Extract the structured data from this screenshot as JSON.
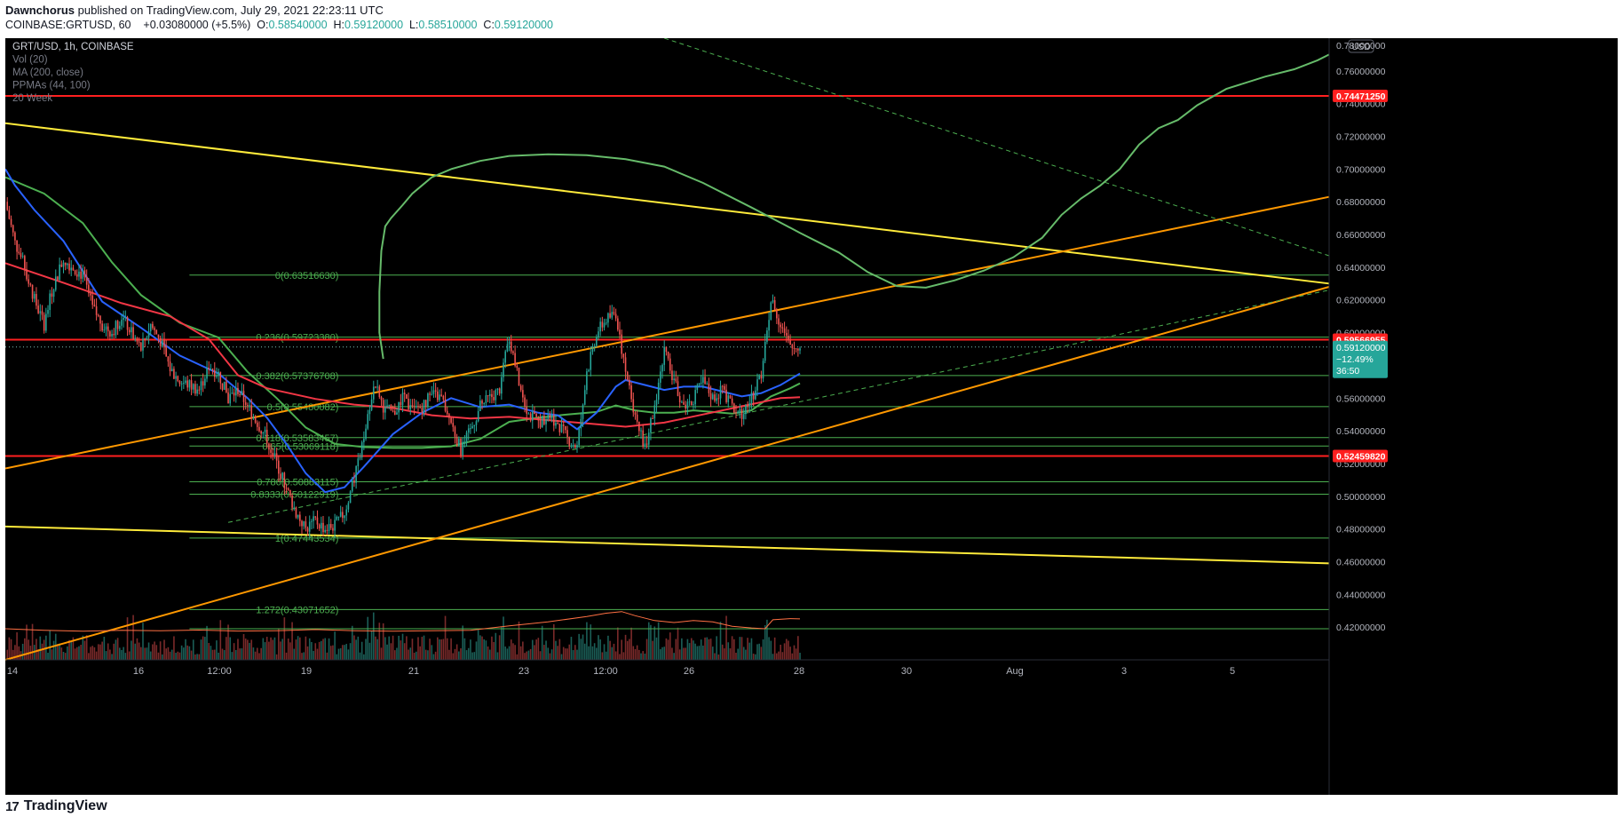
{
  "header": {
    "author": "Dawnchorus",
    "published": "published on TradingView.com, July 29, 2021 22:23:11 UTC",
    "symbol_line": "COINBASE:GRTUSD, 60",
    "change": "+0.03080000 (+5.5%)",
    "o_label": "O:",
    "o": "0.58540000",
    "h_label": "H:",
    "h": "0.59120000",
    "l_label": "L:",
    "l": "0.58510000",
    "c_label": "C:",
    "c": "0.59120000"
  },
  "legend": [
    "GRT/USD, 1h, COINBASE",
    "Vol (20)",
    "MA (200, close)",
    "PPMAs (44, 100)",
    "20 Week"
  ],
  "brand": {
    "logo": "17",
    "name": "TradingView"
  },
  "colors": {
    "background": "#000000",
    "up": "#26a69a",
    "down": "#ef5350",
    "fib": "#4caf50",
    "red_level": "#ff1f1f",
    "yellow": "#ffeb3b",
    "orange": "#ff9800",
    "green_ma": "#66bb6a",
    "blue_ma": "#2962ff",
    "red_ma": "#f23645",
    "price_tag": "#26a69a"
  },
  "chart_data": {
    "type": "candlestick",
    "x_ticks": [
      "14",
      "16",
      "12:00",
      "19",
      "21",
      "23",
      "12:00",
      "26",
      "28",
      "30",
      "Aug",
      "3",
      "5"
    ],
    "x_range": [
      "Jul 13 2021",
      "Aug 6 2021"
    ],
    "y_range": [
      0.4,
      0.78
    ],
    "y_ticks": [
      "0.76000000",
      "0.74000000",
      "0.72000000",
      "0.70000000",
      "0.68000000",
      "0.66000000",
      "0.64000000",
      "0.62000000",
      "0.60000000",
      "0.58000000",
      "0.56000000",
      "0.54000000",
      "0.52000000",
      "0.50000000",
      "0.48000000",
      "0.46000000",
      "0.44000000",
      "0.42000000"
    ],
    "currency_badge": "USD",
    "price_axis_tags": [
      {
        "value": 0.78,
        "text": "0.78000000",
        "type": "edge"
      },
      {
        "value": 0.7447125,
        "text": "0.74471250",
        "type": "red"
      },
      {
        "value": 0.59566955,
        "text": "0.59566955",
        "type": "red"
      },
      {
        "value": 0.5245982,
        "text": "0.52459820",
        "type": "red"
      }
    ],
    "last_price": {
      "value": 0.5912,
      "price": "0.59120000",
      "change": "−12.49%",
      "countdown": "36:50"
    },
    "fib_levels": [
      {
        "label": "0(0.63516630)",
        "value": 0.6351663
      },
      {
        "label": "0.236(0.59723380)",
        "value": 0.5972338
      },
      {
        "label": "0.382(0.57376708)",
        "value": 0.57376708
      },
      {
        "label": "0.5(0.55480082)",
        "value": 0.55480082
      },
      {
        "label": "0.618(0.53583457)",
        "value": 0.53583457
      },
      {
        "label": "0.65(0.53069118)",
        "value": 0.53069118
      },
      {
        "label": "0.786(0.50883115)",
        "value": 0.50883115
      },
      {
        "label": "0.8333(0.50122919)",
        "value": 0.50122919
      },
      {
        "label": "1(0.47443534)",
        "value": 0.47443534
      },
      {
        "label": "1.272(0.43071652)",
        "value": 0.43071652
      },
      {
        "label": "",
        "value": 0.419
      }
    ],
    "horizontal_levels": [
      0.7447125,
      0.59566955,
      0.5245982
    ],
    "close_series": [
      [
        0,
        0.68
      ],
      [
        5,
        0.655
      ],
      [
        10,
        0.64
      ],
      [
        15,
        0.62
      ],
      [
        20,
        0.605
      ],
      [
        25,
        0.63
      ],
      [
        30,
        0.645
      ],
      [
        35,
        0.64
      ],
      [
        40,
        0.635
      ],
      [
        45,
        0.615
      ],
      [
        50,
        0.605
      ],
      [
        55,
        0.6
      ],
      [
        60,
        0.61
      ],
      [
        65,
        0.6
      ],
      [
        70,
        0.59
      ],
      [
        75,
        0.605
      ],
      [
        80,
        0.595
      ],
      [
        85,
        0.578
      ],
      [
        90,
        0.57
      ],
      [
        95,
        0.568
      ],
      [
        100,
        0.565
      ],
      [
        105,
        0.58
      ],
      [
        110,
        0.575
      ],
      [
        115,
        0.56
      ],
      [
        120,
        0.565
      ],
      [
        125,
        0.555
      ],
      [
        130,
        0.545
      ],
      [
        135,
        0.535
      ],
      [
        140,
        0.52
      ],
      [
        145,
        0.505
      ],
      [
        150,
        0.49
      ],
      [
        155,
        0.48
      ],
      [
        160,
        0.485
      ],
      [
        165,
        0.48
      ],
      [
        170,
        0.482
      ],
      [
        175,
        0.49
      ],
      [
        180,
        0.51
      ],
      [
        185,
        0.535
      ],
      [
        190,
        0.57
      ],
      [
        195,
        0.555
      ],
      [
        200,
        0.55
      ],
      [
        205,
        0.56
      ],
      [
        210,
        0.552
      ],
      [
        215,
        0.555
      ],
      [
        220,
        0.562
      ],
      [
        225,
        0.56
      ],
      [
        230,
        0.545
      ],
      [
        235,
        0.528
      ],
      [
        240,
        0.54
      ],
      [
        245,
        0.555
      ],
      [
        250,
        0.56
      ],
      [
        255,
        0.565
      ],
      [
        260,
        0.598
      ],
      [
        265,
        0.57
      ],
      [
        270,
        0.55
      ],
      [
        275,
        0.545
      ],
      [
        280,
        0.55
      ],
      [
        285,
        0.545
      ],
      [
        290,
        0.535
      ],
      [
        295,
        0.53
      ],
      [
        300,
        0.575
      ],
      [
        305,
        0.6
      ],
      [
        310,
        0.608
      ],
      [
        315,
        0.612
      ],
      [
        320,
        0.575
      ],
      [
        325,
        0.55
      ],
      [
        330,
        0.53
      ],
      [
        335,
        0.555
      ],
      [
        340,
        0.59
      ],
      [
        345,
        0.57
      ],
      [
        350,
        0.555
      ],
      [
        355,
        0.56
      ],
      [
        360,
        0.57
      ],
      [
        365,
        0.56
      ],
      [
        370,
        0.565
      ],
      [
        375,
        0.555
      ],
      [
        380,
        0.55
      ],
      [
        385,
        0.56
      ],
      [
        390,
        0.575
      ],
      [
        395,
        0.62
      ],
      [
        400,
        0.605
      ],
      [
        405,
        0.59
      ],
      [
        410,
        0.5912
      ]
    ],
    "volume_ma_series": [
      [
        0,
        0.419
      ],
      [
        20,
        0.418
      ],
      [
        40,
        0.4175
      ],
      [
        60,
        0.418
      ],
      [
        80,
        0.4178
      ],
      [
        100,
        0.4182
      ],
      [
        120,
        0.4176
      ],
      [
        140,
        0.4178
      ],
      [
        160,
        0.4185
      ],
      [
        180,
        0.4178
      ],
      [
        200,
        0.4175
      ],
      [
        220,
        0.4178
      ],
      [
        240,
        0.418
      ],
      [
        260,
        0.4208
      ],
      [
        280,
        0.4232
      ],
      [
        300,
        0.4265
      ],
      [
        310,
        0.4285
      ],
      [
        318,
        0.4295
      ],
      [
        325,
        0.427
      ],
      [
        335,
        0.424
      ],
      [
        345,
        0.4228
      ],
      [
        355,
        0.424
      ],
      [
        365,
        0.4232
      ],
      [
        375,
        0.4205
      ],
      [
        385,
        0.4195
      ],
      [
        392,
        0.419
      ],
      [
        396,
        0.4245
      ],
      [
        405,
        0.4252
      ],
      [
        410,
        0.425
      ]
    ],
    "ma_200": [
      [
        0,
        0.6425
      ],
      [
        30,
        0.6305
      ],
      [
        60,
        0.618
      ],
      [
        85,
        0.61
      ],
      [
        105,
        0.596
      ],
      [
        120,
        0.574
      ],
      [
        135,
        0.566
      ],
      [
        160,
        0.5595
      ],
      [
        180,
        0.556
      ],
      [
        200,
        0.554
      ],
      [
        220,
        0.5495
      ],
      [
        240,
        0.5475
      ],
      [
        260,
        0.5485
      ],
      [
        280,
        0.5465
      ],
      [
        300,
        0.5445
      ],
      [
        320,
        0.5425
      ],
      [
        340,
        0.545
      ],
      [
        360,
        0.55
      ],
      [
        380,
        0.555
      ],
      [
        400,
        0.56
      ],
      [
        410,
        0.5605
      ]
    ],
    "ppma_blue": [
      [
        0,
        0.7
      ],
      [
        5,
        0.69
      ],
      [
        15,
        0.675
      ],
      [
        30,
        0.656
      ],
      [
        50,
        0.619
      ],
      [
        70,
        0.603
      ],
      [
        90,
        0.586
      ],
      [
        110,
        0.575
      ],
      [
        125,
        0.56
      ],
      [
        135,
        0.548
      ],
      [
        145,
        0.532
      ],
      [
        155,
        0.514
      ],
      [
        165,
        0.5025
      ],
      [
        175,
        0.5055
      ],
      [
        185,
        0.518
      ],
      [
        200,
        0.538
      ],
      [
        215,
        0.551
      ],
      [
        230,
        0.56
      ],
      [
        245,
        0.5545
      ],
      [
        260,
        0.556
      ],
      [
        275,
        0.551
      ],
      [
        285,
        0.5495
      ],
      [
        295,
        0.541
      ],
      [
        305,
        0.551
      ],
      [
        315,
        0.567
      ],
      [
        320,
        0.571
      ],
      [
        330,
        0.568
      ],
      [
        340,
        0.565
      ],
      [
        350,
        0.567
      ],
      [
        360,
        0.567
      ],
      [
        370,
        0.564
      ],
      [
        380,
        0.561
      ],
      [
        390,
        0.563
      ],
      [
        400,
        0.568
      ],
      [
        410,
        0.575
      ]
    ],
    "ppma_green": [
      [
        0,
        0.695
      ],
      [
        20,
        0.685
      ],
      [
        40,
        0.667
      ],
      [
        55,
        0.643
      ],
      [
        70,
        0.623
      ],
      [
        90,
        0.606
      ],
      [
        110,
        0.597
      ],
      [
        125,
        0.576
      ],
      [
        140,
        0.56
      ],
      [
        155,
        0.542
      ],
      [
        170,
        0.532
      ],
      [
        185,
        0.53
      ],
      [
        200,
        0.5295
      ],
      [
        215,
        0.5295
      ],
      [
        230,
        0.5305
      ],
      [
        245,
        0.535
      ],
      [
        260,
        0.5455
      ],
      [
        275,
        0.548
      ],
      [
        290,
        0.55
      ],
      [
        305,
        0.5515
      ],
      [
        315,
        0.5555
      ],
      [
        325,
        0.5525
      ],
      [
        335,
        0.551
      ],
      [
        345,
        0.551
      ],
      [
        355,
        0.5525
      ],
      [
        365,
        0.5515
      ],
      [
        375,
        0.5505
      ],
      [
        385,
        0.5525
      ],
      [
        395,
        0.561
      ],
      [
        405,
        0.566
      ],
      [
        410,
        0.569
      ]
    ],
    "week20_curve": [
      [
        195,
        0.584
      ],
      [
        193,
        0.6
      ],
      [
        193,
        0.625
      ],
      [
        194,
        0.65
      ],
      [
        196,
        0.665
      ],
      [
        199,
        0.67
      ],
      [
        205,
        0.678
      ],
      [
        210,
        0.685
      ],
      [
        215,
        0.69
      ],
      [
        220,
        0.695
      ],
      [
        230,
        0.7
      ],
      [
        245,
        0.705
      ],
      [
        260,
        0.708
      ],
      [
        280,
        0.709
      ],
      [
        300,
        0.7085
      ],
      [
        320,
        0.706
      ],
      [
        340,
        0.7015
      ],
      [
        360,
        0.6915
      ],
      [
        385,
        0.6765
      ],
      [
        410,
        0.661
      ],
      [
        430,
        0.649
      ],
      [
        445,
        0.637
      ],
      [
        460,
        0.6285
      ],
      [
        475,
        0.6275
      ],
      [
        490,
        0.632
      ],
      [
        505,
        0.638
      ],
      [
        520,
        0.646
      ],
      [
        535,
        0.658
      ],
      [
        545,
        0.672
      ],
      [
        555,
        0.682
      ],
      [
        565,
        0.69
      ],
      [
        575,
        0.7
      ],
      [
        585,
        0.715
      ],
      [
        595,
        0.725
      ],
      [
        605,
        0.73
      ],
      [
        615,
        0.739
      ],
      [
        630,
        0.749
      ],
      [
        650,
        0.7565
      ],
      [
        665,
        0.761
      ],
      [
        677,
        0.7665
      ],
      [
        683,
        0.77
      ]
    ],
    "trendlines": [
      {
        "color": "yellow",
        "from": [
          0,
          0.728
        ],
        "to": [
          683,
          0.63
        ]
      },
      {
        "color": "yellow",
        "from": [
          0,
          0.4815
        ],
        "to": [
          683,
          0.459
        ]
      },
      {
        "color": "orange",
        "from": [
          0,
          0.517
        ],
        "to": [
          683,
          0.683
        ]
      },
      {
        "color": "orange",
        "from": [
          0,
          0.4
        ],
        "to": [
          683,
          0.628
        ]
      },
      {
        "color": "green_dashed",
        "from": [
          115,
          0.484
        ],
        "to": [
          683,
          0.626
        ]
      },
      {
        "color": "green_dashed",
        "from": [
          340,
          0.78
        ],
        "to": [
          683,
          0.647
        ]
      }
    ]
  }
}
